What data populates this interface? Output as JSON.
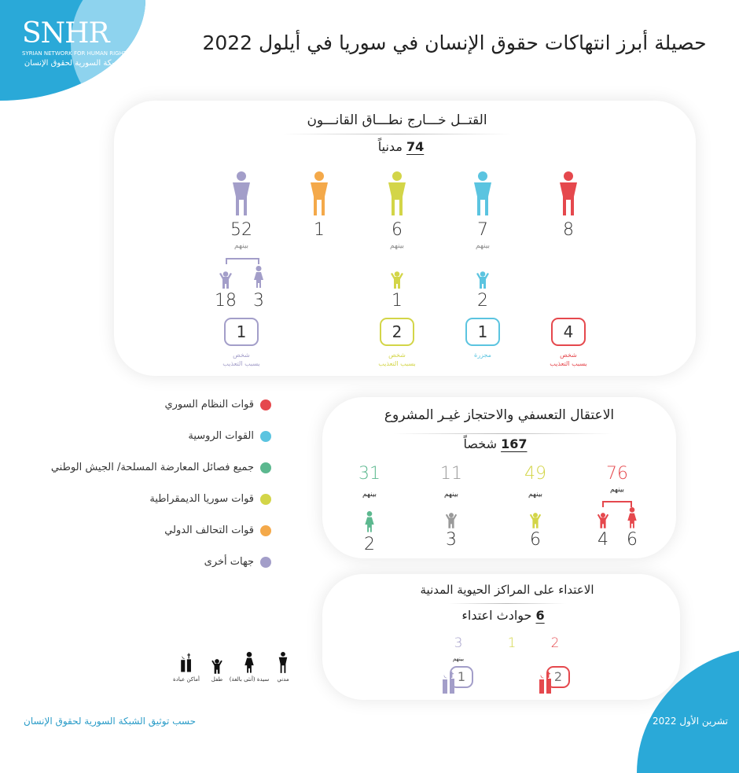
{
  "colors": {
    "syrian_regime": "#e5484d",
    "russian": "#5bc4e0",
    "opposition": "#5cb88f",
    "sdf": "#d3d548",
    "coalition": "#f4a94a",
    "other": "#a39ec9",
    "gray": "#9a9a9a",
    "brand_blue": "#2aa9d8"
  },
  "logo": {
    "mark": "SNHR",
    "sub_en": "SYRIAN NETWORK FOR HUMAN RIGHTS",
    "sub_ar": "الشبكة السورية لحقوق الإنسان"
  },
  "title": "حصيلة أبرز انتهاكات حقوق الإنسان في سوريا في أيلول 2022",
  "killing": {
    "title": "القتــل خـــارج نطـــاق القانـــون",
    "total_num": "74",
    "total_unit": "مدنياً",
    "columns": [
      {
        "party": "other",
        "count": "52",
        "among": "بينهم",
        "children": "18",
        "women": "3",
        "box": "1",
        "box_label": [
          "شخص",
          "بسبب التعذيب"
        ]
      },
      {
        "party": "coalition",
        "count": "1"
      },
      {
        "party": "sdf",
        "count": "6",
        "among": "بينهم",
        "children": "1",
        "box": "2",
        "box_label": [
          "شخص",
          "بسبب التعذيب"
        ]
      },
      {
        "party": "russian",
        "count": "7",
        "among": "بينهم",
        "children": "2",
        "box": "1",
        "box_label": [
          "مجزرة"
        ]
      },
      {
        "party": "syrian_regime",
        "count": "8",
        "box": "4",
        "box_label": [
          "شخص",
          "بسبب التعذيب"
        ]
      }
    ]
  },
  "legend": [
    {
      "party": "syrian_regime",
      "label": "قوات النظام السوري"
    },
    {
      "party": "russian",
      "label": "القوات الروسية"
    },
    {
      "party": "opposition",
      "label": "جميع فصائل المعارضة المسلحة/ الجيش الوطني"
    },
    {
      "party": "sdf",
      "label": "قوات سوريا الديمقراطية"
    },
    {
      "party": "coalition",
      "label": "قوات التحالف الدولي"
    },
    {
      "party": "other",
      "label": "جهات أخرى"
    }
  ],
  "detention": {
    "title": "الاعتقال التعسفي والاحتجاز غيـر المشروع",
    "total_num": "167",
    "total_unit": "شخصاً",
    "columns": [
      {
        "party": "opposition",
        "count": "31",
        "among": "بينهم",
        "women": "2"
      },
      {
        "party": "other_gray",
        "count": "11",
        "among": "بينهم",
        "children": "3"
      },
      {
        "party": "sdf",
        "count": "49",
        "among": "بينهم",
        "children": "6"
      },
      {
        "party": "syrian_regime",
        "count": "76",
        "among": "بينهم",
        "children": "4",
        "women": "6"
      }
    ]
  },
  "attacks": {
    "title": "الاعتداء على المراكز الحيوية المدنية",
    "total_num": "6",
    "total_unit": "حوادث اعتداء",
    "columns": [
      {
        "party": "other",
        "count": "3",
        "among": "بينهم",
        "worship": "1"
      },
      {
        "party": "sdf",
        "count": "1"
      },
      {
        "party": "syrian_regime",
        "count": "2",
        "worship": "2"
      }
    ]
  },
  "icon_legend": [
    {
      "icon": "worship-places-icon",
      "label": "أماكن عبادة"
    },
    {
      "icon": "child-icon",
      "label": "طفل"
    },
    {
      "icon": "woman-icon",
      "label": "سيدة (أنثى بالغة)"
    },
    {
      "icon": "civilian-icon",
      "label": "مدني"
    }
  ],
  "footer": {
    "source": "حسب توثيق الشبكة السورية لحقوق الإنسان",
    "date": "تشرين الأول 2022"
  }
}
